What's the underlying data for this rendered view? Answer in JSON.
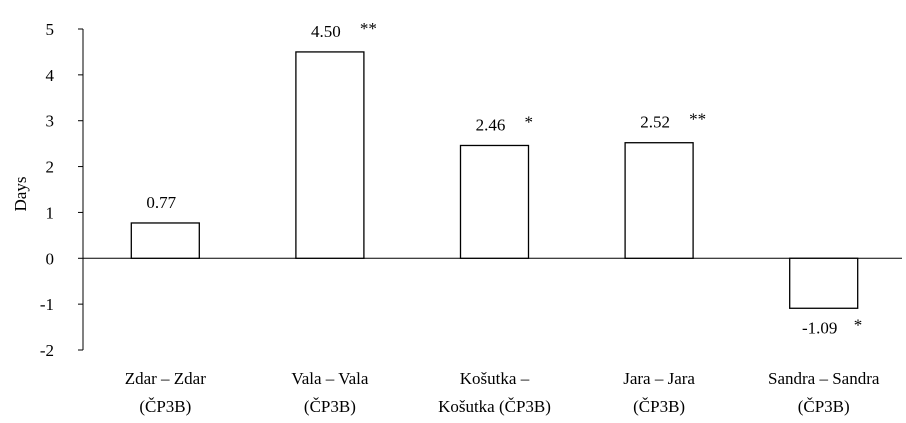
{
  "chart_data": {
    "type": "bar",
    "ylabel": "Days",
    "ylim": [
      -2,
      5
    ],
    "yticks": [
      5,
      4,
      3,
      2,
      1,
      0,
      -1,
      -2
    ],
    "categories": [
      [
        "Zdar – Zdar",
        "(ČP3B)"
      ],
      [
        "Vala – Vala",
        "(ČP3B)"
      ],
      [
        "Košutka –",
        "Košutka (ČP3B)"
      ],
      [
        "Jara – Jara",
        "(ČP3B)"
      ],
      [
        "Sandra – Sandra",
        "(ČP3B)"
      ]
    ],
    "values": [
      0.77,
      4.5,
      2.46,
      2.52,
      -1.09
    ],
    "data_labels": [
      "0.77",
      "4.50",
      "2.46",
      "2.52",
      "-1.09"
    ],
    "significance": [
      "",
      "**",
      "*",
      "**",
      "*"
    ],
    "bar_fill": "#ffffff",
    "bar_stroke": "#000000",
    "grid": false
  }
}
